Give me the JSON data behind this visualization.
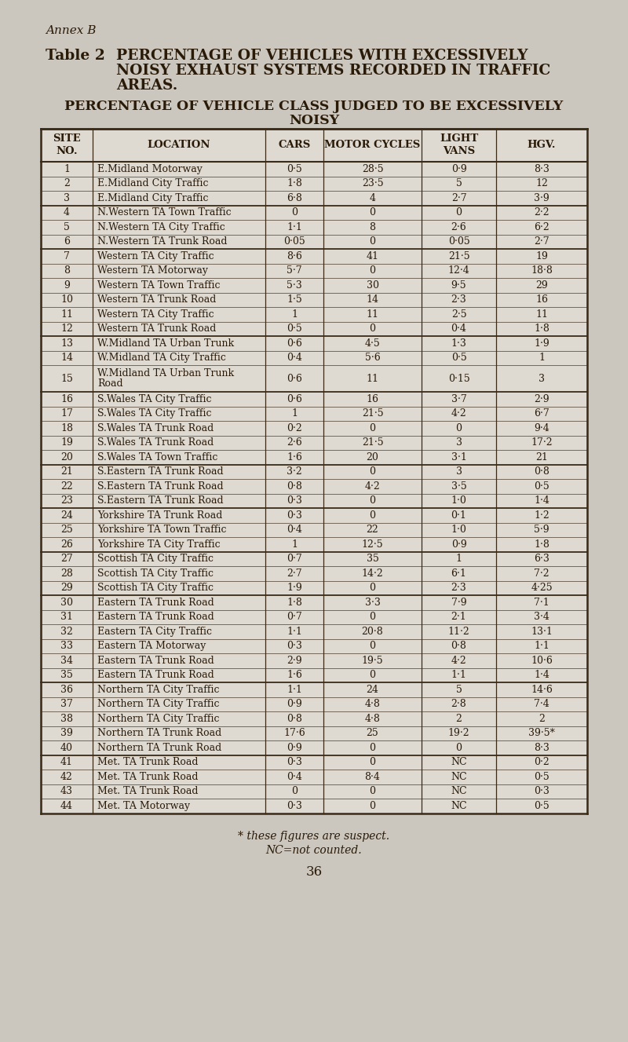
{
  "annex": "Annex B",
  "title_table": "Table 2",
  "title_line1": "PERCENTAGE OF VEHICLES WITH EXCESSIVELY",
  "title_line2": "NOISY EXHAUST SYSTEMS RECORDED IN TRAFFIC",
  "title_line3": "AREAS.",
  "subtitle_line1": "PERCENTAGE OF VEHICLE CLASS JUDGED TO BE EXCESSIVELY",
  "subtitle_line2": "NOISY",
  "col_headers": [
    "SITE\nNO.",
    "LOCATION",
    "CARS",
    "MOTOR CYCLES",
    "LIGHT\nVANS",
    "HGV."
  ],
  "rows": [
    [
      "1",
      "E.Midland Motorway",
      "0·5",
      "28·5",
      "0·9",
      "8·3"
    ],
    [
      "2",
      "E.Midland City Traffic",
      "1·8",
      "23·5",
      "5",
      "12"
    ],
    [
      "3",
      "E.Midland City Traffic",
      "6·8",
      "4",
      "2·7",
      "3·9"
    ],
    [
      "4",
      "N.Western TA Town Traffic",
      "0",
      "0",
      "0",
      "2·2"
    ],
    [
      "5",
      "N.Western TA City Traffic",
      "1·1",
      "8",
      "2·6",
      "6·2"
    ],
    [
      "6",
      "N.Western TA Trunk Road",
      "0·05",
      "0",
      "0·05",
      "2·7"
    ],
    [
      "7",
      "Western TA City Traffic",
      "8·6",
      "41",
      "21·5",
      "19"
    ],
    [
      "8",
      "Western TA Motorway",
      "5·7",
      "0",
      "12·4",
      "18·8"
    ],
    [
      "9",
      "Western TA Town Traffic",
      "5·3",
      "30",
      "9·5",
      "29"
    ],
    [
      "10",
      "Western TA Trunk Road",
      "1·5",
      "14",
      "2·3",
      "16"
    ],
    [
      "11",
      "Western TA City Traffic",
      "1",
      "11",
      "2·5",
      "11"
    ],
    [
      "12",
      "Western TA Trunk Road",
      "0·5",
      "0",
      "0·4",
      "1·8"
    ],
    [
      "13",
      "W.Midland TA Urban Trunk",
      "0·6",
      "4·5",
      "1·3",
      "1·9"
    ],
    [
      "14",
      "W.Midland TA City Traffic",
      "0·4",
      "5·6",
      "0·5",
      "1"
    ],
    [
      "15",
      "W.Midland TA Urban Trunk\nRoad",
      "0·6",
      "11",
      "0·15",
      "3"
    ],
    [
      "16",
      "S.Wales TA City Traffic",
      "0·6",
      "16",
      "3·7",
      "2·9"
    ],
    [
      "17",
      "S.Wales TA City Traffic",
      "1",
      "21·5",
      "4·2",
      "6·7"
    ],
    [
      "18",
      "S.Wales TA Trunk Road",
      "0·2",
      "0",
      "0",
      "9·4"
    ],
    [
      "19",
      "S.Wales TA Trunk Road",
      "2·6",
      "21·5",
      "3",
      "17·2"
    ],
    [
      "20",
      "S.Wales TA Town Traffic",
      "1·6",
      "20",
      "3·1",
      "21"
    ],
    [
      "21",
      "S.Eastern TA Trunk Road",
      "3·2",
      "0",
      "3",
      "0·8"
    ],
    [
      "22",
      "S.Eastern TA Trunk Road",
      "0·8",
      "4·2",
      "3·5",
      "0·5"
    ],
    [
      "23",
      "S.Eastern TA Trunk Road",
      "0·3",
      "0",
      "1·0",
      "1·4"
    ],
    [
      "24",
      "Yorkshire TA Trunk Road",
      "0·3",
      "0",
      "0·1",
      "1·2"
    ],
    [
      "25",
      "Yorkshire TA Town Traffic",
      "0·4",
      "22",
      "1·0",
      "5·9"
    ],
    [
      "26",
      "Yorkshire TA City Traffic",
      "1",
      "12·5",
      "0·9",
      "1·8"
    ],
    [
      "27",
      "Scottish TA City Traffic",
      "0·7",
      "35",
      "1",
      "6·3"
    ],
    [
      "28",
      "Scottish TA City Traffic",
      "2·7",
      "14·2",
      "6·1",
      "7·2"
    ],
    [
      "29",
      "Scottish TA City Traffic",
      "1·9",
      "0",
      "2·3",
      "4·25"
    ],
    [
      "30",
      "Eastern TA Trunk Road",
      "1·8",
      "3·3",
      "7·9",
      "7·1"
    ],
    [
      "31",
      "Eastern TA Trunk Road",
      "0·7",
      "0",
      "2·1",
      "3·4"
    ],
    [
      "32",
      "Eastern TA City Traffic",
      "1·1",
      "20·8",
      "11·2",
      "13·1"
    ],
    [
      "33",
      "Eastern TA Motorway",
      "0·3",
      "0",
      "0·8",
      "1·1"
    ],
    [
      "34",
      "Eastern TA Trunk Road",
      "2·9",
      "19·5",
      "4·2",
      "10·6"
    ],
    [
      "35",
      "Eastern TA Trunk Road",
      "1·6",
      "0",
      "1·1",
      "1·4"
    ],
    [
      "36",
      "Northern TA City Traffic",
      "1·1",
      "24",
      "5",
      "14·6"
    ],
    [
      "37",
      "Northern TA City Traffic",
      "0·9",
      "4·8",
      "2·8",
      "7·4"
    ],
    [
      "38",
      "Northern TA City Traffic",
      "0·8",
      "4·8",
      "2",
      "2"
    ],
    [
      "39",
      "Northern TA Trunk Road",
      "17·6",
      "25",
      "19·2",
      "39·5*"
    ],
    [
      "40",
      "Northern TA Trunk Road",
      "0·9",
      "0",
      "0",
      "8·3"
    ],
    [
      "41",
      "Met. TA Trunk Road",
      "0·3",
      "0",
      "NC",
      "0·2"
    ],
    [
      "42",
      "Met. TA Trunk Road",
      "0·4",
      "8·4",
      "NC",
      "0·5"
    ],
    [
      "43",
      "Met. TA Trunk Road",
      "0",
      "0",
      "NC",
      "0·3"
    ],
    [
      "44",
      "Met. TA Motorway",
      "0·3",
      "0",
      "NC",
      "0·5"
    ]
  ],
  "group_separators": [
    3,
    6,
    12,
    15,
    20,
    23,
    26,
    29,
    35,
    40
  ],
  "footnote1": "* these figures are suspect.",
  "footnote2": "NC=not counted.",
  "page_number": "36",
  "bg_color": "#cbc7be",
  "text_color": "#2a1a08",
  "table_bg": "#dedad2",
  "border_color": "#3a2a18"
}
